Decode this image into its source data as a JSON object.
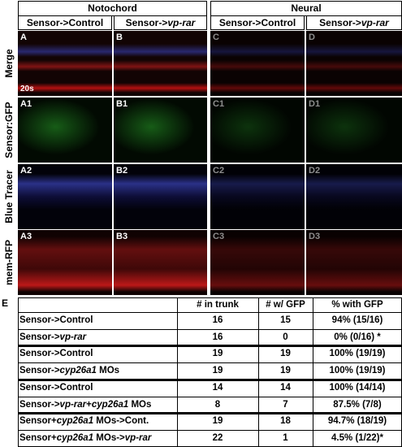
{
  "header": {
    "groups": [
      "Notochord",
      "Neural"
    ],
    "columns": [
      [
        "Sensor->Control"
      ],
      [
        "Sensor->",
        "vp-rar"
      ],
      [
        "Sensor->Control"
      ],
      [
        "Sensor->",
        "vp-rar"
      ]
    ]
  },
  "panels": {
    "stage": "20s",
    "rows": [
      {
        "label": "Merge",
        "cells": [
          "A",
          "B",
          "C",
          "D"
        ]
      },
      {
        "label": "Sensor:GFP",
        "cells": [
          "A1",
          "B1",
          "C1",
          "D1"
        ]
      },
      {
        "label": "Blue Tracer",
        "cells": [
          "A2",
          "B2",
          "C2",
          "D2"
        ]
      },
      {
        "label": "mem-RFP",
        "cells": [
          "A3",
          "B3",
          "C3",
          "D3"
        ]
      }
    ]
  },
  "table": {
    "label": "E",
    "columns": [
      "# in trunk",
      "# w/ GFP",
      "% with GFP"
    ],
    "rows": [
      {
        "label": [
          "Sensor->Control"
        ],
        "in_trunk": 16,
        "with_gfp": 15,
        "percent": "94% (15/16)"
      },
      {
        "label": [
          "Sensor->",
          "vp-rar"
        ],
        "in_trunk": 16,
        "with_gfp": 0,
        "percent": "0% (0/16) *"
      },
      {
        "label": [
          "Sensor->Control"
        ],
        "in_trunk": 19,
        "with_gfp": 19,
        "percent": "100% (19/19)"
      },
      {
        "label": [
          "Sensor->",
          "cyp26a1",
          " MOs"
        ],
        "in_trunk": 19,
        "with_gfp": 19,
        "percent": "100% (19/19)"
      },
      {
        "label": [
          "Sensor->Control"
        ],
        "in_trunk": 14,
        "with_gfp": 14,
        "percent": "100% (14/14)"
      },
      {
        "label": [
          "Sensor->",
          "vp-rar",
          "+",
          "cyp26a1",
          " MOs"
        ],
        "in_trunk": 8,
        "with_gfp": 7,
        "percent": "87.5% (7/8)"
      },
      {
        "label": [
          "Sensor+",
          "cyp26a1",
          " MOs->Cont."
        ],
        "in_trunk": 19,
        "with_gfp": 18,
        "percent": "94.7% (18/19)"
      },
      {
        "label": [
          "Sensor+",
          "cyp26a1",
          " MOs->",
          "vp-rar"
        ],
        "in_trunk": 22,
        "with_gfp": 1,
        "percent": "4.5% (1/22)*"
      }
    ]
  }
}
